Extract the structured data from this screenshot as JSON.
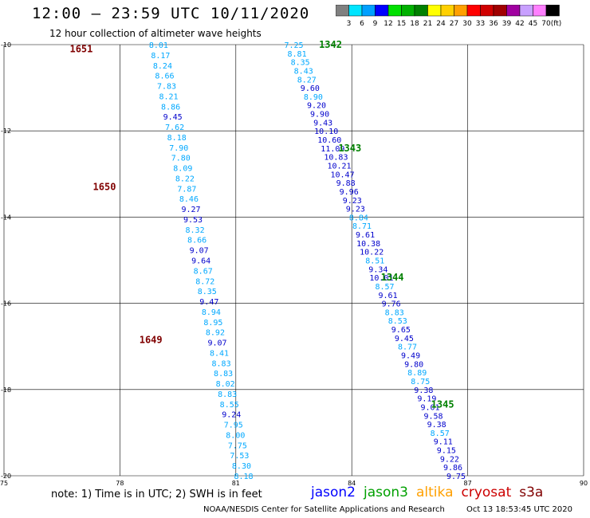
{
  "header": {
    "title": "12:00 – 23:59 UTC 10/11/2020",
    "subtitle": "12 hour collection of altimeter wave heights"
  },
  "colorbar": {
    "labels": [
      "3",
      "6",
      "9",
      "12",
      "15",
      "18",
      "21",
      "24",
      "27",
      "30",
      "33",
      "36",
      "39",
      "42",
      "45",
      "70"
    ],
    "unit": "(ft)",
    "colors": [
      "#808080",
      "#00e5ff",
      "#00a0ff",
      "#0000ff",
      "#00e000",
      "#00b000",
      "#008000",
      "#ffff00",
      "#ffd000",
      "#ffa000",
      "#ff0000",
      "#d00000",
      "#a00000",
      "#a000a0",
      "#c8a0ff",
      "#ff80ff",
      "#000000"
    ]
  },
  "note": "note: 1) Time is in UTC; 2) SWH is in feet",
  "legend": [
    {
      "name": "jason2",
      "color": "#0000ff"
    },
    {
      "name": "jason3",
      "color": "#00a000"
    },
    {
      "name": "altika",
      "color": "#ffa000"
    },
    {
      "name": "cryosat",
      "color": "#cc0000"
    },
    {
      "name": "s3a",
      "color": "#800000"
    }
  ],
  "footer": {
    "center": "NOAA/NESDIS Center for Satellite Applications and Research",
    "timestamp": "Oct 13 18:53:45 UTC 2020"
  },
  "chart_data": {
    "type": "scatter",
    "xlim": [
      75,
      90
    ],
    "ylim": [
      -20,
      -10
    ],
    "xticks": [
      "75",
      "78",
      "81",
      "84",
      "87",
      "90"
    ],
    "yticks": [
      "-10",
      "-12",
      "-14",
      "-16",
      "-18",
      "-20"
    ],
    "grid": true,
    "tracks": [
      {
        "pass_labels": [
          {
            "text": "1651",
            "x": 77.0,
            "y": -10.1,
            "color": "#800000"
          },
          {
            "text": "1650",
            "x": 77.6,
            "y": -13.3,
            "color": "#800000"
          },
          {
            "text": "1649",
            "x": 78.8,
            "y": -16.85,
            "color": "#800000"
          }
        ],
        "x_start": 79.0,
        "x_end": 81.2,
        "values": [
          "8.01",
          "8.17",
          "8.24",
          "8.66",
          "7.83",
          "8.21",
          "8.86",
          "9.45",
          "7.62",
          "8.18",
          "7.90",
          "7.80",
          "8.09",
          "8.22",
          "7.87",
          "8.46",
          "9.27",
          "9.53",
          "8.32",
          "8.66",
          "9.07",
          "9.64",
          "8.67",
          "8.72",
          "8.35",
          "9.47",
          "8.94",
          "8.95",
          "8.92",
          "9.07",
          "8.41",
          "8.83",
          "8.83",
          "8.02",
          "8.83",
          "8.55",
          "9.24",
          "7.95",
          "8.00",
          "7.75",
          "7.53",
          "8.30",
          "8.18"
        ]
      },
      {
        "pass_labels": [
          {
            "text": "1342",
            "x": 83.45,
            "y": -10.0,
            "color": "#008000"
          },
          {
            "text": "1343",
            "x": 83.95,
            "y": -12.4,
            "color": "#008000"
          },
          {
            "text": "1344",
            "x": 85.05,
            "y": -15.4,
            "color": "#008000"
          },
          {
            "text": "1345",
            "x": 86.35,
            "y": -18.35,
            "color": "#008000"
          }
        ],
        "x_start": 82.5,
        "x_end": 86.7,
        "values": [
          "7.25",
          "8.81",
          "8.35",
          "8.43",
          "8.27",
          "9.60",
          "8.90",
          "9.20",
          "9.90",
          "9.43",
          "10.10",
          "10.60",
          "11.09",
          "10.83",
          "10.21",
          "10.47",
          "9.88",
          "9.96",
          "9.23",
          "9.23",
          "8.84",
          "8.71",
          "9.61",
          "10.38",
          "10.22",
          "8.51",
          "9.34",
          "10.01",
          "8.57",
          "9.61",
          "9.76",
          "8.83",
          "8.53",
          "9.65",
          "9.45",
          "8.77",
          "9.49",
          "9.80",
          "8.89",
          "8.75",
          "9.38",
          "9.19",
          "9.01",
          "9.58",
          "9.38",
          "8.57",
          "9.11",
          "9.15",
          "9.22",
          "9.86",
          "9.75"
        ]
      }
    ]
  }
}
